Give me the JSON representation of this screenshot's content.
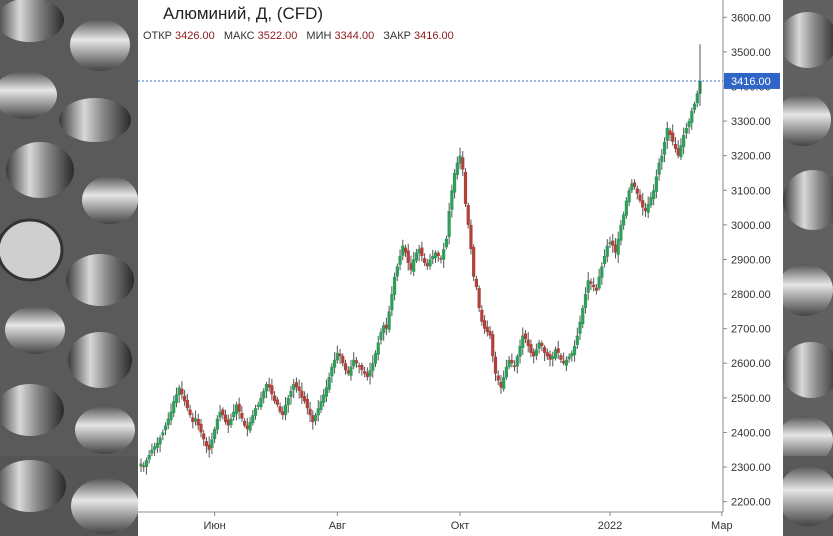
{
  "chart_data": {
    "type": "candlestick",
    "title": "Алюминий, Д, (CFD)",
    "ohlc_labels": {
      "open_label": "ОТКР",
      "high_label": "МАКС",
      "low_label": "МИН",
      "close_label": "ЗАКР"
    },
    "ohlc_values": {
      "open": "3426.00",
      "high": "3522.00",
      "low": "3344.00",
      "close": "3416.00"
    },
    "last_price_label": "3416.00",
    "last_price": 3416,
    "ylim": [
      2170,
      3650
    ],
    "y_ticks": [
      2200,
      2300,
      2400,
      2500,
      2600,
      2700,
      2800,
      2900,
      3000,
      3100,
      3200,
      3300,
      3400,
      3500,
      3600
    ],
    "y_tick_labels": [
      "2200.00",
      "2300.00",
      "2400.00",
      "2500.00",
      "2600.00",
      "2700.00",
      "2800.00",
      "2900.00",
      "3000.00",
      "3100.00",
      "3200.00",
      "3300.00",
      "3400.00",
      "3500.00",
      "3600.00"
    ],
    "x_ticks": [
      {
        "label": "Июн",
        "index": 27
      },
      {
        "label": "Авг",
        "index": 72
      },
      {
        "label": "Окт",
        "index": 117
      },
      {
        "label": "2022",
        "index": 172
      },
      {
        "label": "Мар",
        "index": 213
      }
    ],
    "closes": [
      2310,
      2300,
      2320,
      2335,
      2350,
      2360,
      2370,
      2385,
      2400,
      2420,
      2440,
      2460,
      2490,
      2510,
      2530,
      2510,
      2490,
      2470,
      2450,
      2430,
      2440,
      2420,
      2400,
      2380,
      2360,
      2350,
      2380,
      2410,
      2440,
      2460,
      2450,
      2430,
      2420,
      2440,
      2460,
      2480,
      2460,
      2440,
      2420,
      2410,
      2430,
      2450,
      2470,
      2480,
      2500,
      2520,
      2540,
      2530,
      2510,
      2490,
      2480,
      2460,
      2450,
      2480,
      2500,
      2520,
      2540,
      2530,
      2520,
      2500,
      2490,
      2470,
      2450,
      2430,
      2450,
      2470,
      2490,
      2510,
      2530,
      2560,
      2590,
      2610,
      2630,
      2620,
      2600,
      2580,
      2570,
      2590,
      2610,
      2600,
      2590,
      2580,
      2570,
      2560,
      2580,
      2600,
      2630,
      2660,
      2690,
      2710,
      2700,
      2750,
      2800,
      2850,
      2880,
      2910,
      2940,
      2920,
      2890,
      2870,
      2900,
      2920,
      2930,
      2910,
      2890,
      2880,
      2900,
      2910,
      2920,
      2910,
      2900,
      2930,
      2960,
      3040,
      3100,
      3150,
      3180,
      3200,
      3160,
      3060,
      3000,
      2930,
      2850,
      2820,
      2760,
      2720,
      2700,
      2690,
      2680,
      2620,
      2570,
      2550,
      2530,
      2560,
      2590,
      2610,
      2600,
      2590,
      2620,
      2650,
      2680,
      2670,
      2650,
      2630,
      2620,
      2640,
      2660,
      2650,
      2630,
      2620,
      2610,
      2620,
      2640,
      2630,
      2610,
      2600,
      2610,
      2620,
      2630,
      2650,
      2680,
      2720,
      2760,
      2800,
      2840,
      2830,
      2820,
      2810,
      2850,
      2880,
      2910,
      2940,
      2950,
      2940,
      2920,
      2960,
      3000,
      3030,
      3070,
      3100,
      3120,
      3110,
      3090,
      3070,
      3050,
      3040,
      3060,
      3080,
      3100,
      3140,
      3180,
      3200,
      3240,
      3280,
      3260,
      3240,
      3220,
      3200,
      3230,
      3260,
      3280,
      3300,
      3330,
      3350,
      3380,
      3416
    ]
  }
}
